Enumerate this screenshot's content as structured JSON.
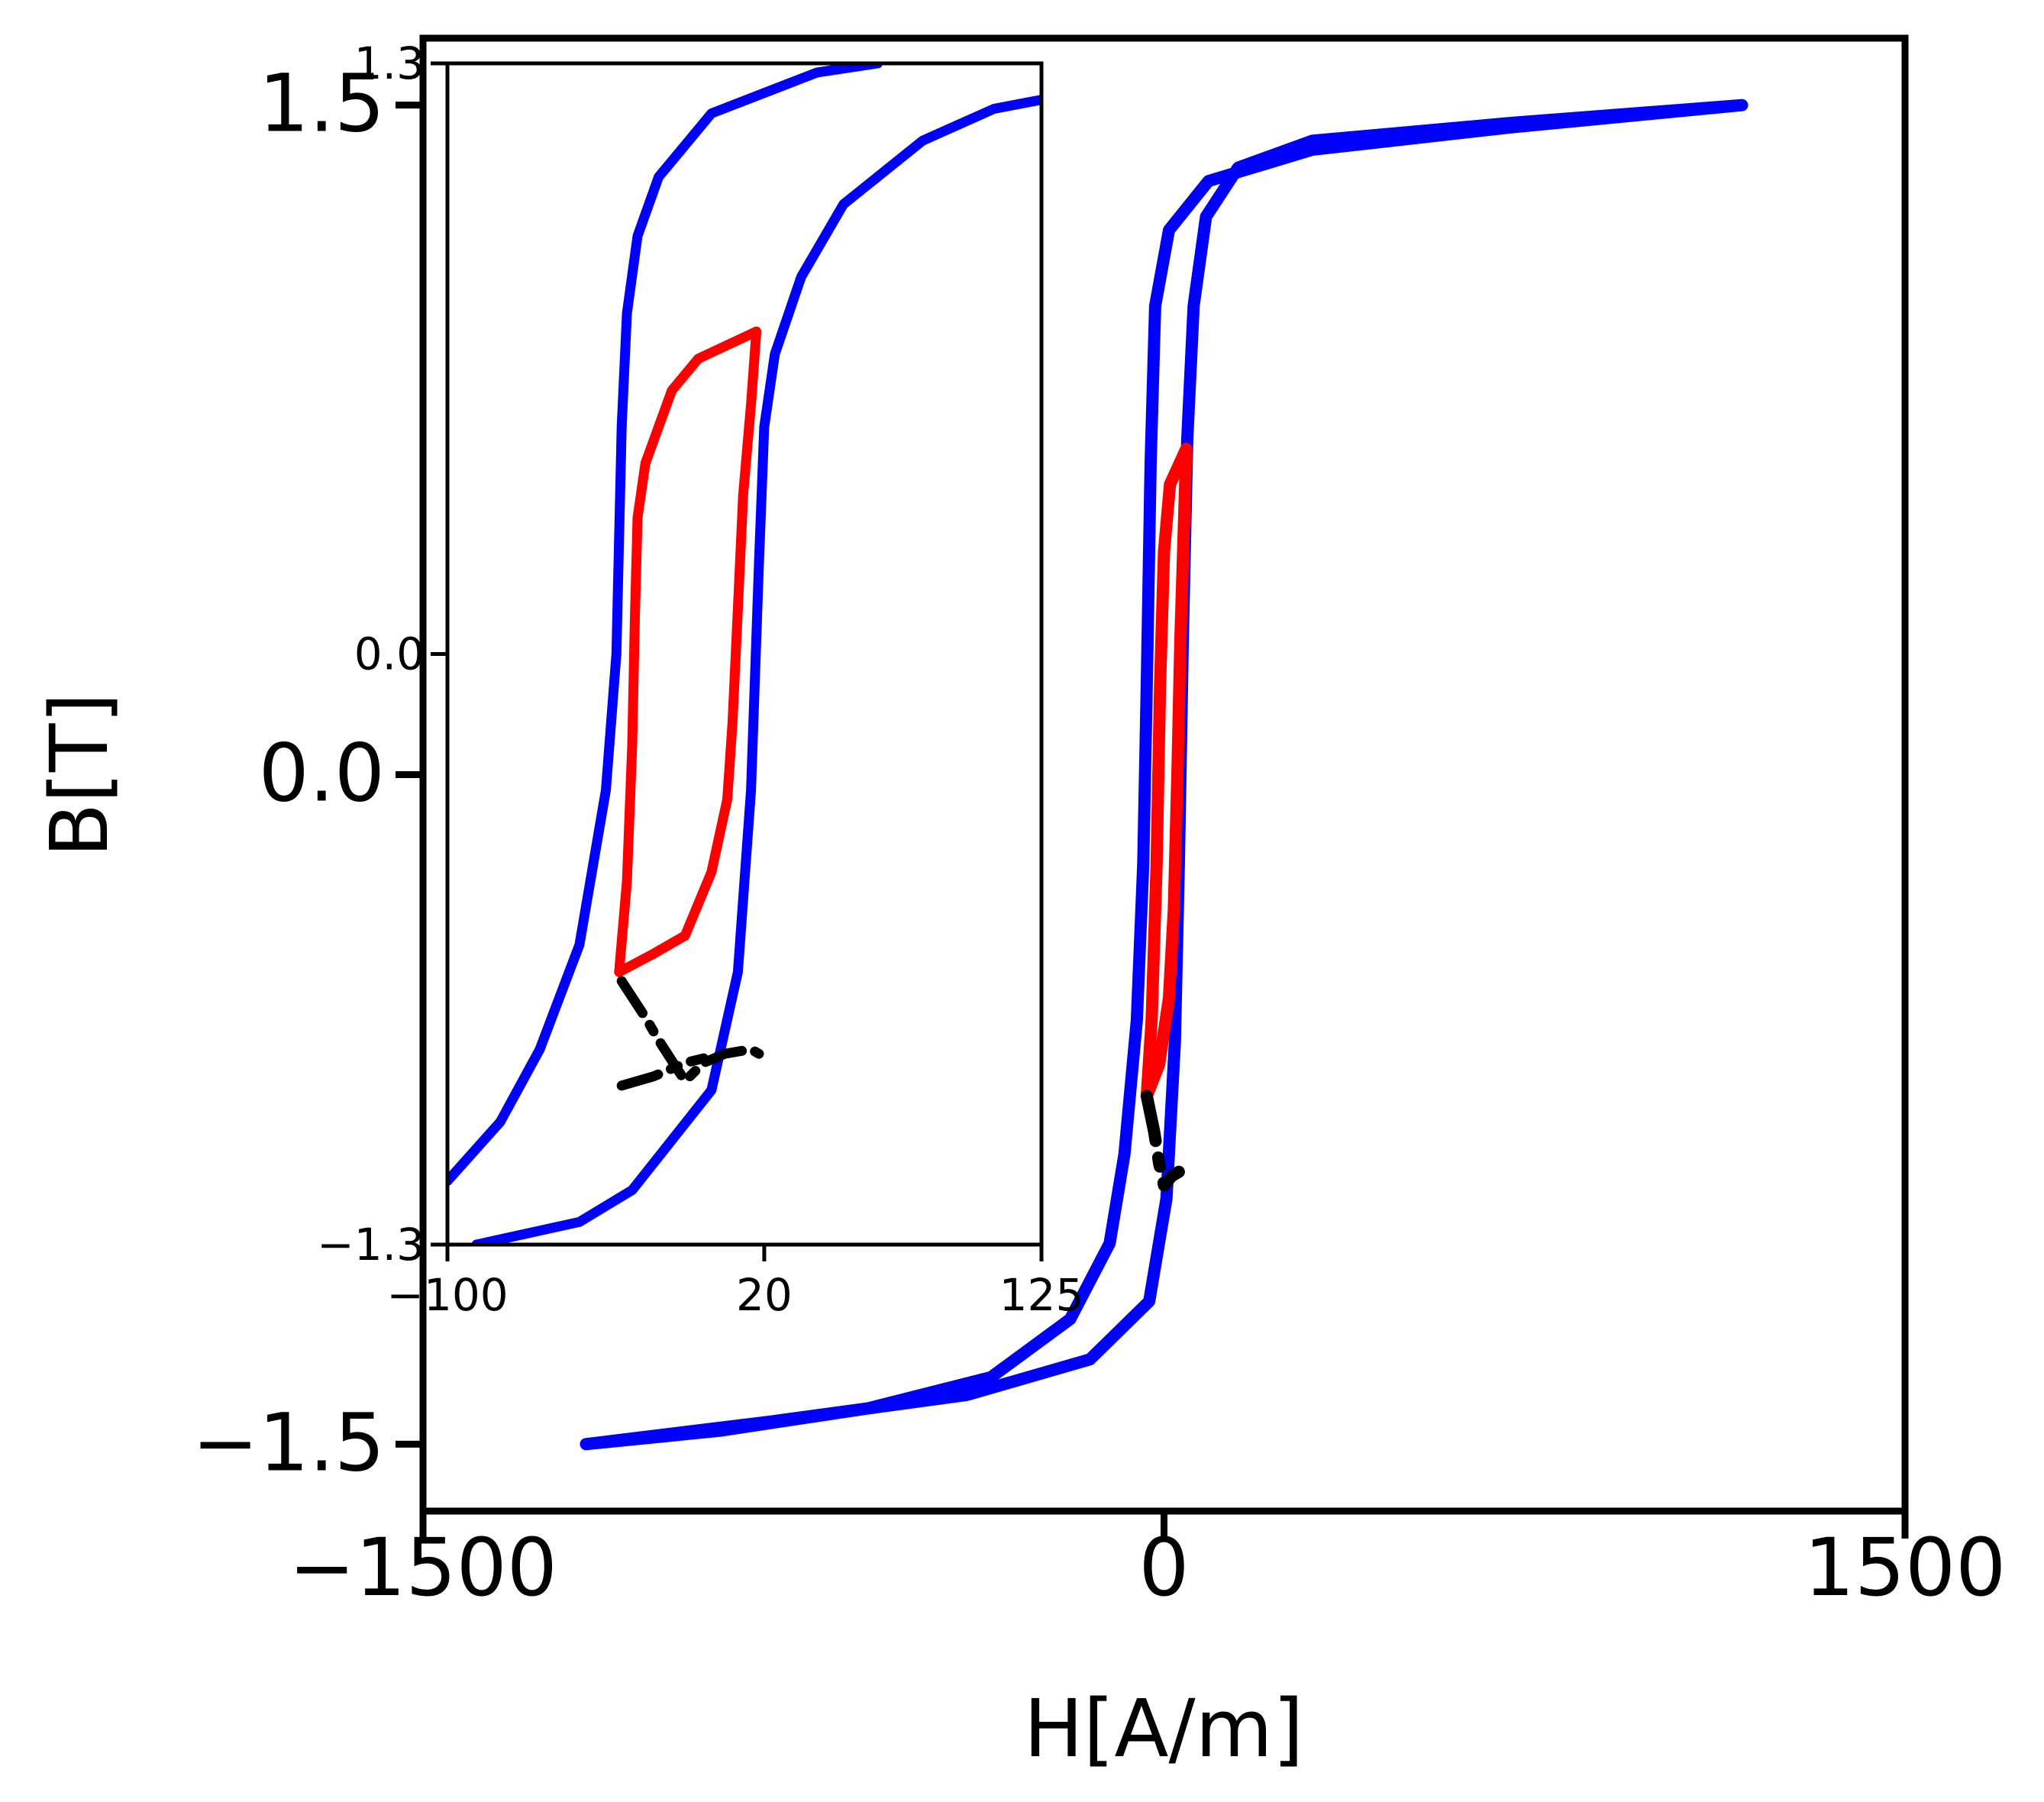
{
  "chart_data": [
    {
      "panel": "main",
      "type": "line",
      "xlabel": "H[A/m]",
      "ylabel": "B[T]",
      "xlim": [
        -1500,
        1500
      ],
      "ylim": [
        -1.65,
        1.65
      ],
      "xticks": [
        -1500,
        0,
        1500
      ],
      "xtick_labels": [
        "−1500",
        "0",
        "1500"
      ],
      "yticks": [
        -1.5,
        0.0,
        1.5
      ],
      "ytick_labels": [
        "−1.5",
        "0.0",
        "1.5"
      ],
      "grid": false,
      "series": [
        {
          "color": "#0000ff",
          "style": "solid",
          "points": [
            [
              -1170,
              -1.5
            ],
            [
              -900,
              -1.47
            ],
            [
              -600,
              -1.42
            ],
            [
              -350,
              -1.35
            ],
            [
              -190,
              -1.22
            ],
            [
              -110,
              -1.05
            ],
            [
              -80,
              -0.85
            ],
            [
              -55,
              -0.55
            ],
            [
              -42,
              -0.2
            ],
            [
              -35,
              0.2
            ],
            [
              -27,
              0.7
            ],
            [
              -18,
              1.05
            ],
            [
              10,
              1.22
            ],
            [
              90,
              1.33
            ],
            [
              300,
              1.4
            ],
            [
              700,
              1.45
            ],
            [
              1170,
              1.5
            ],
            [
              700,
              1.46
            ],
            [
              300,
              1.42
            ],
            [
              150,
              1.36
            ],
            [
              85,
              1.25
            ],
            [
              60,
              1.05
            ],
            [
              47,
              0.75
            ],
            [
              38,
              0.3
            ],
            [
              30,
              -0.2
            ],
            [
              22,
              -0.6
            ],
            [
              5,
              -0.95
            ],
            [
              -30,
              -1.18
            ],
            [
              -150,
              -1.31
            ],
            [
              -400,
              -1.39
            ],
            [
              -800,
              -1.45
            ],
            [
              -1170,
              -1.5
            ]
          ]
        },
        {
          "color": "#ff0000",
          "style": "solid",
          "points": [
            [
              -35,
              -0.72
            ],
            [
              -25,
              -0.55
            ],
            [
              -15,
              -0.2
            ],
            [
              -8,
              0.2
            ],
            [
              0,
              0.5
            ],
            [
              12,
              0.65
            ],
            [
              45,
              0.73
            ],
            [
              40,
              0.55
            ],
            [
              33,
              0.3
            ],
            [
              27,
              0.0
            ],
            [
              20,
              -0.3
            ],
            [
              10,
              -0.5
            ],
            [
              -10,
              -0.65
            ],
            [
              -35,
              -0.72
            ]
          ]
        },
        {
          "color": "#000000",
          "style": "dashdot",
          "points": [
            [
              -35,
              -0.72
            ],
            [
              -20,
              -0.8
            ],
            [
              -10,
              -0.87
            ],
            [
              0,
              -0.92
            ],
            [
              15,
              -0.9
            ],
            [
              30,
              -0.89
            ]
          ]
        }
      ]
    },
    {
      "panel": "inset",
      "type": "line",
      "xlim": [
        -100,
        125
      ],
      "ylim": [
        -1.3,
        1.3
      ],
      "xticks": [
        -100,
        20,
        125
      ],
      "xtick_labels": [
        "−100",
        "20",
        "125"
      ],
      "yticks": [
        -1.3,
        0.0,
        1.3
      ],
      "ytick_labels": [
        "−1.3",
        "0.0",
        "1.3"
      ],
      "grid": false,
      "series": [
        {
          "color": "#0000ff",
          "style": "solid",
          "points": [
            [
              -100,
              -1.16
            ],
            [
              -80,
              -1.03
            ],
            [
              -65,
              -0.87
            ],
            [
              -50,
              -0.64
            ],
            [
              -40,
              -0.3
            ],
            [
              -36,
              0.0
            ],
            [
              -34,
              0.5
            ],
            [
              -32,
              0.75
            ],
            [
              -28,
              0.92
            ],
            [
              -20,
              1.05
            ],
            [
              0,
              1.19
            ],
            [
              40,
              1.28
            ],
            [
              63,
              1.3
            ]
          ]
        },
        {
          "color": "#0000ff",
          "style": "solid",
          "points": [
            [
              -89,
              -1.3
            ],
            [
              -50,
              -1.25
            ],
            [
              -30,
              -1.18
            ],
            [
              0,
              -0.96
            ],
            [
              10,
              -0.7
            ],
            [
              15,
              -0.3
            ],
            [
              18,
              0.2
            ],
            [
              20,
              0.5
            ],
            [
              24,
              0.66
            ],
            [
              34,
              0.83
            ],
            [
              50,
              0.99
            ],
            [
              80,
              1.13
            ],
            [
              107,
              1.2
            ],
            [
              125,
              1.22
            ]
          ]
        },
        {
          "color": "#ff0000",
          "style": "solid",
          "points": [
            [
              -35,
              -0.7
            ],
            [
              -32,
              -0.5
            ],
            [
              -30,
              -0.2
            ],
            [
              -29,
              0.08
            ],
            [
              -28,
              0.3
            ],
            [
              -25,
              0.42
            ],
            [
              -15,
              0.58
            ],
            [
              -5,
              0.65
            ],
            [
              17,
              0.71
            ],
            [
              15,
              0.55
            ],
            [
              12,
              0.35
            ],
            [
              10,
              0.1
            ],
            [
              8,
              -0.15
            ],
            [
              6,
              -0.32
            ],
            [
              0,
              -0.48
            ],
            [
              -10,
              -0.62
            ],
            [
              -22,
              -0.66
            ],
            [
              -35,
              -0.7
            ]
          ]
        },
        {
          "color": "#000000",
          "style": "dashdot",
          "points": [
            [
              -34,
              -0.72
            ],
            [
              -25,
              -0.8
            ],
            [
              -20,
              -0.85
            ],
            [
              -10,
              -0.94
            ],
            [
              -3,
              -0.9
            ],
            [
              5,
              -0.88
            ],
            [
              15,
              -0.87
            ],
            [
              18,
              -0.88
            ]
          ]
        },
        {
          "color": "#000000",
          "style": "dashdot",
          "points": [
            [
              -34,
              -0.95
            ],
            [
              -22,
              -0.93
            ],
            [
              -18,
              -0.92
            ],
            [
              -10,
              -0.9
            ],
            [
              -3,
              -0.89
            ]
          ]
        }
      ]
    }
  ]
}
